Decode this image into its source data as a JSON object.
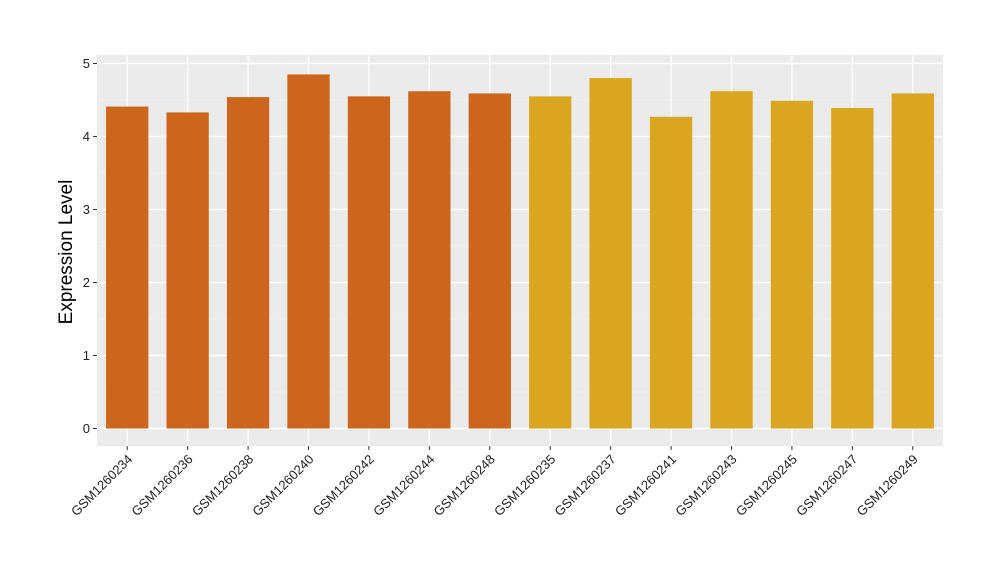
{
  "chart_data": {
    "type": "bar",
    "title": "",
    "xlabel": "",
    "ylabel": "Expression Level",
    "ylim": [
      0,
      5
    ],
    "yticks": [
      0,
      1,
      2,
      3,
      4,
      5
    ],
    "grid": true,
    "legend": "none",
    "background": "#ebebeb",
    "categories": [
      "GSM1260234",
      "GSM1260236",
      "GSM1260238",
      "GSM1260240",
      "GSM1260242",
      "GSM1260244",
      "GSM1260248",
      "GSM1260235",
      "GSM1260237",
      "GSM1260241",
      "GSM1260243",
      "GSM1260245",
      "GSM1260247",
      "GSM1260249"
    ],
    "values": [
      4.41,
      4.33,
      4.54,
      4.85,
      4.55,
      4.62,
      4.59,
      4.55,
      4.8,
      4.27,
      4.62,
      4.49,
      4.39,
      4.59
    ],
    "group_colors": [
      "#cd661d",
      "#cd661d",
      "#cd661d",
      "#cd661d",
      "#cd661d",
      "#cd661d",
      "#cd661d",
      "#daa520",
      "#daa520",
      "#daa520",
      "#daa520",
      "#daa520",
      "#daa520",
      "#daa520"
    ]
  }
}
